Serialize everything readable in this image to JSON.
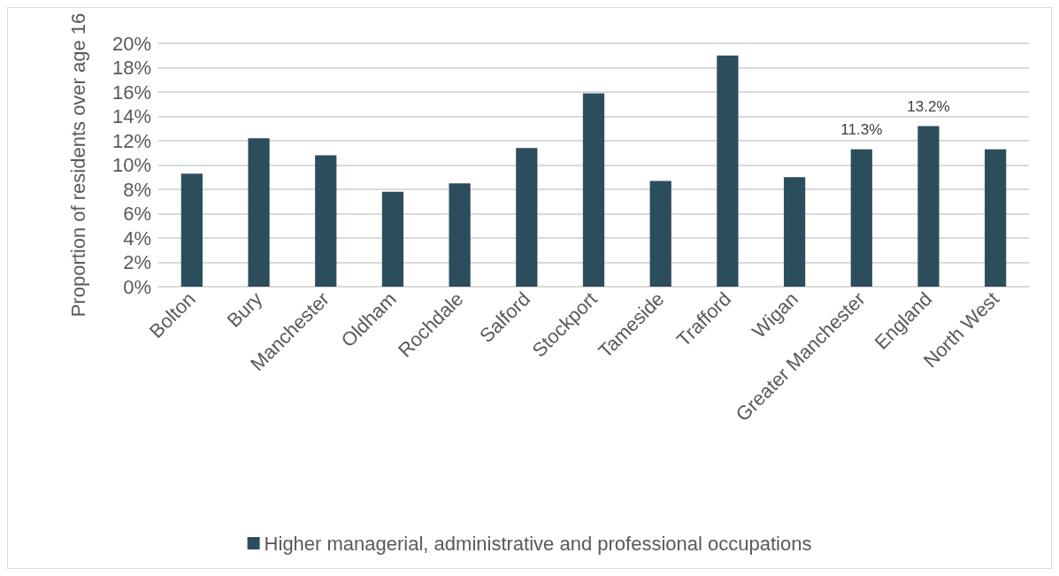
{
  "chart_data": {
    "type": "bar",
    "ylabel": "Proportion of residents over age 16",
    "categories": [
      "Bolton",
      "Bury",
      "Manchester",
      "Oldham",
      "Rochdale",
      "Salford",
      "Stockport",
      "Tameside",
      "Trafford",
      "Wigan",
      "Greater Manchester",
      "England",
      "North West"
    ],
    "series": [
      {
        "name": "Higher managerial, administrative and professional occupations",
        "color": "#2c4d5c",
        "values": [
          9.3,
          12.2,
          10.8,
          7.8,
          8.5,
          11.4,
          15.9,
          8.7,
          19.0,
          9.0,
          11.3,
          13.2,
          11.3
        ],
        "value_labels": [
          null,
          null,
          null,
          null,
          null,
          null,
          null,
          null,
          null,
          null,
          "11.3%",
          "13.2%",
          null
        ]
      }
    ],
    "ylim": [
      0,
      20
    ],
    "yticks": [
      {
        "value": 0,
        "label": "0%"
      },
      {
        "value": 2,
        "label": "2%"
      },
      {
        "value": 4,
        "label": "4%"
      },
      {
        "value": 6,
        "label": "6%"
      },
      {
        "value": 8,
        "label": "8%"
      },
      {
        "value": 10,
        "label": "10%"
      },
      {
        "value": 12,
        "label": "12%"
      },
      {
        "value": 14,
        "label": "14%"
      },
      {
        "value": 16,
        "label": "16%"
      },
      {
        "value": 18,
        "label": "18%"
      },
      {
        "value": 20,
        "label": "20%"
      }
    ],
    "grid": "y",
    "legend": "bottom"
  }
}
